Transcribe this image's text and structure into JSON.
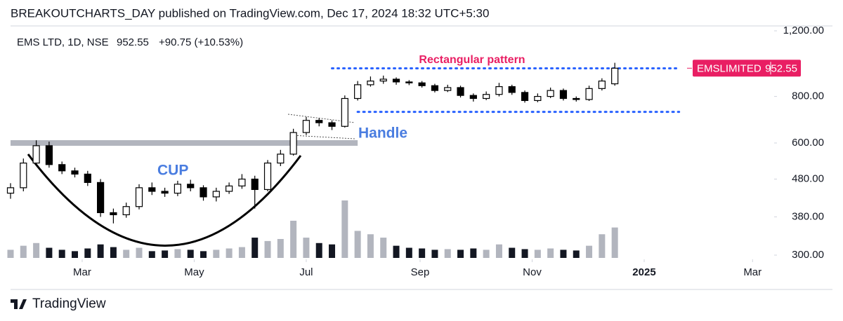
{
  "header": {
    "title": "BREAKOUTCHARTS_DAY published on TradingView.com, Dec 17, 2024 18:32 UTC+5:30"
  },
  "footer": {
    "brand": "TradingView"
  },
  "chart_data": {
    "type": "candlestick",
    "legend": {
      "symbol": "EMS LTD, 1D, NSE",
      "last": 952.55,
      "change": "+90.75 (+10.53%)"
    },
    "price_tag": {
      "name": "EMSLIMITED",
      "value": 952.55,
      "color": "#e91e63"
    },
    "x": [
      "2024-01-22",
      "2024-01-29",
      "2024-02-05",
      "2024-02-12",
      "2024-02-19",
      "2024-02-26",
      "2024-03-04",
      "2024-03-11",
      "2024-03-18",
      "2024-03-25",
      "2024-04-01",
      "2024-04-08",
      "2024-04-15",
      "2024-04-22",
      "2024-04-29",
      "2024-05-06",
      "2024-05-13",
      "2024-05-20",
      "2024-05-27",
      "2024-06-03",
      "2024-06-10",
      "2024-06-17",
      "2024-06-24",
      "2024-07-01",
      "2024-07-08",
      "2024-07-15",
      "2024-07-22",
      "2024-07-29",
      "2024-08-05",
      "2024-08-12",
      "2024-08-19",
      "2024-08-26",
      "2024-09-02",
      "2024-09-09",
      "2024-09-16",
      "2024-09-23",
      "2024-09-30",
      "2024-10-07",
      "2024-10-14",
      "2024-10-21",
      "2024-10-28",
      "2024-11-04",
      "2024-11-11",
      "2024-11-18",
      "2024-11-25",
      "2024-12-02",
      "2024-12-09",
      "2024-12-16"
    ],
    "open": [
      440,
      455,
      530,
      590,
      525,
      505,
      495,
      470,
      390,
      385,
      405,
      455,
      445,
      440,
      465,
      455,
      430,
      445,
      460,
      480,
      450,
      530,
      560,
      640,
      690,
      680,
      665,
      790,
      860,
      880,
      890,
      875,
      870,
      855,
      830,
      845,
      805,
      790,
      810,
      850,
      820,
      780,
      800,
      830,
      790,
      785,
      840,
      865
    ],
    "high": [
      468,
      545,
      610,
      605,
      535,
      515,
      505,
      480,
      400,
      415,
      465,
      470,
      455,
      475,
      478,
      462,
      455,
      470,
      495,
      490,
      540,
      575,
      655,
      705,
      700,
      690,
      805,
      880,
      905,
      910,
      900,
      885,
      880,
      865,
      860,
      855,
      815,
      825,
      870,
      860,
      830,
      815,
      845,
      840,
      800,
      855,
      895,
      985
    ],
    "low": [
      425,
      445,
      520,
      515,
      495,
      485,
      460,
      380,
      365,
      378,
      398,
      435,
      430,
      432,
      445,
      420,
      418,
      438,
      452,
      400,
      445,
      520,
      555,
      630,
      665,
      650,
      660,
      780,
      850,
      865,
      860,
      858,
      845,
      820,
      822,
      795,
      775,
      782,
      800,
      808,
      770,
      772,
      792,
      780,
      775,
      778,
      830,
      855
    ],
    "close": [
      455,
      530,
      590,
      525,
      505,
      495,
      470,
      390,
      385,
      405,
      455,
      445,
      440,
      465,
      455,
      430,
      445,
      460,
      480,
      450,
      530,
      560,
      640,
      690,
      680,
      665,
      790,
      860,
      880,
      890,
      875,
      870,
      855,
      830,
      845,
      805,
      790,
      810,
      850,
      820,
      780,
      800,
      830,
      790,
      785,
      840,
      880,
      952.55
    ],
    "volume": [
      12,
      18,
      22,
      15,
      12,
      10,
      14,
      20,
      16,
      12,
      15,
      10,
      11,
      13,
      12,
      10,
      12,
      14,
      16,
      30,
      25,
      28,
      55,
      30,
      22,
      20,
      85,
      40,
      35,
      30,
      18,
      15,
      14,
      12,
      13,
      12,
      14,
      12,
      20,
      15,
      13,
      12,
      14,
      12,
      11,
      18,
      35,
      45
    ],
    "up_color": "#ffffff",
    "down_color": "#000000",
    "wick_color": "#000000",
    "volume_up_color": "#b2b5be",
    "volume_down_color": "#131722",
    "log_scale": true,
    "xlim": [
      "2024-01-22",
      "2025-03-12"
    ],
    "xticks": [
      {
        "value": "2024-03-01",
        "label": "Mar"
      },
      {
        "value": "2024-05-01",
        "label": "May"
      },
      {
        "value": "2024-07-01",
        "label": "Jul"
      },
      {
        "value": "2024-09-01",
        "label": "Sep"
      },
      {
        "value": "2024-11-01",
        "label": "Nov"
      },
      {
        "value": "2025-01-01",
        "label": "2025"
      },
      {
        "value": "2025-03-01",
        "label": "Mar"
      }
    ],
    "ylim": [
      300,
      1200
    ],
    "yticks": [
      {
        "value": 1200,
        "label": "1,200.00"
      },
      {
        "value": 800,
        "label": "800.00"
      },
      {
        "value": 600,
        "label": "600.00"
      },
      {
        "value": 480,
        "label": "480.00"
      },
      {
        "value": 380,
        "label": "380.00"
      },
      {
        "value": 300,
        "label": "300.00"
      }
    ],
    "drawings": {
      "resistance": {
        "value": 600,
        "start": "2024-01-22",
        "end": "2024-07-29",
        "color": "#b2b5be"
      },
      "rectangle": {
        "label": "Rectangular pattern",
        "top": 952,
        "bottom": 727,
        "top_start": "2024-07-15",
        "bottom_start": "2024-07-29",
        "end": "2025-01-20",
        "color": "#2962ff",
        "label_color": "#e91e63"
      },
      "handle": {
        "label": "Handle",
        "color": "#4a7de0"
      },
      "cup": {
        "label": "CUP",
        "color": "#4a7de0"
      }
    }
  }
}
